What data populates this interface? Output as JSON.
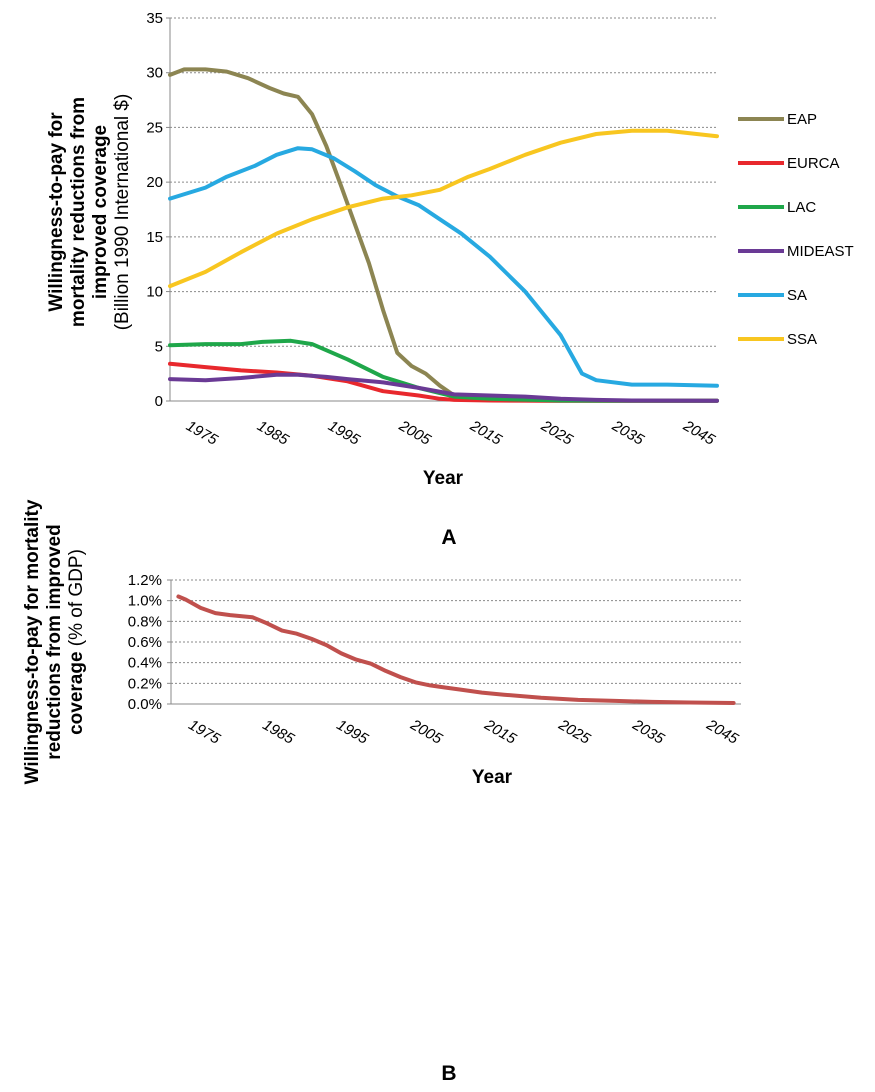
{
  "chart_data": [
    {
      "type": "line",
      "panel_label": "A",
      "xlabel": "Year",
      "ylabel_bold": "Willingness-to-pay for mortality reductions from improved coverage",
      "ylabel_normal": "(Billion 1990 International $)",
      "ylabel_lines": [
        {
          "bold": "Willingness-to-pay for",
          "normal": ""
        },
        {
          "bold": "mortality reductions from",
          "normal": ""
        },
        {
          "bold": "improved coverage",
          "normal": ""
        },
        {
          "bold": "",
          "normal": "(Billion 1990 International $)"
        }
      ],
      "xlim": [
        1970,
        2047
      ],
      "ylim": [
        0,
        35
      ],
      "yticks": [
        0,
        5,
        10,
        15,
        20,
        25,
        30,
        35
      ],
      "xticks": [
        1975,
        1985,
        1995,
        2005,
        2015,
        2025,
        2035,
        2045
      ],
      "grid": true,
      "legend_position": "right",
      "series": [
        {
          "name": "EAP",
          "color": "#8c8552",
          "x": [
            1970,
            1972,
            1975,
            1978,
            1981,
            1984,
            1986,
            1988,
            1990,
            1992,
            1994,
            1996,
            1998,
            2000,
            2002,
            2004,
            2006,
            2008,
            2010,
            2015,
            2020,
            2025,
            2030,
            2035,
            2040,
            2047
          ],
          "y": [
            29.8,
            30.3,
            30.3,
            30.1,
            29.5,
            28.6,
            28.1,
            27.8,
            26.2,
            23.3,
            19.8,
            16.2,
            12.6,
            8.3,
            4.4,
            3.2,
            2.5,
            1.4,
            0.5,
            0.1,
            0.05,
            0.03,
            0.02,
            0.02,
            0.02,
            0.02
          ]
        },
        {
          "name": "EURCA",
          "color": "#e8282d",
          "x": [
            1970,
            1975,
            1980,
            1985,
            1990,
            1995,
            2000,
            2005,
            2008,
            2010,
            2015,
            2025,
            2035,
            2047
          ],
          "y": [
            3.4,
            3.1,
            2.8,
            2.6,
            2.3,
            1.8,
            0.9,
            0.5,
            0.2,
            0.1,
            0.05,
            0.02,
            0.02,
            0.02
          ]
        },
        {
          "name": "LAC",
          "color": "#1fa74a",
          "x": [
            1970,
            1975,
            1980,
            1983,
            1987,
            1990,
            1995,
            2000,
            2005,
            2010,
            2015,
            2025,
            2035,
            2047
          ],
          "y": [
            5.1,
            5.2,
            5.2,
            5.4,
            5.5,
            5.2,
            3.8,
            2.2,
            1.2,
            0.4,
            0.2,
            0.05,
            0.02,
            0.02
          ]
        },
        {
          "name": "MIDEAST",
          "color": "#6a3a95",
          "x": [
            1970,
            1975,
            1980,
            1985,
            1988,
            1992,
            1995,
            2000,
            2005,
            2010,
            2015,
            2020,
            2025,
            2030,
            2035,
            2047
          ],
          "y": [
            2.0,
            1.9,
            2.1,
            2.4,
            2.4,
            2.2,
            2.0,
            1.7,
            1.2,
            0.6,
            0.5,
            0.4,
            0.2,
            0.1,
            0.05,
            0.02
          ]
        },
        {
          "name": "SA",
          "color": "#27a9e1",
          "x": [
            1970,
            1975,
            1978,
            1982,
            1985,
            1988,
            1990,
            1993,
            1996,
            1999,
            2002,
            2005,
            2008,
            2011,
            2015,
            2020,
            2025,
            2028,
            2030,
            2035,
            2040,
            2047
          ],
          "y": [
            18.5,
            19.5,
            20.5,
            21.5,
            22.5,
            23.1,
            23.0,
            22.2,
            21.0,
            19.7,
            18.7,
            17.9,
            16.6,
            15.3,
            13.2,
            10.0,
            6.0,
            2.5,
            1.9,
            1.5,
            1.5,
            1.4
          ]
        },
        {
          "name": "SSA",
          "color": "#f8c620",
          "x": [
            1970,
            1975,
            1980,
            1985,
            1990,
            1995,
            2000,
            2004,
            2008,
            2012,
            2015,
            2020,
            2025,
            2030,
            2035,
            2040,
            2047
          ],
          "y": [
            10.5,
            11.8,
            13.6,
            15.3,
            16.6,
            17.7,
            18.5,
            18.8,
            19.3,
            20.5,
            21.2,
            22.5,
            23.6,
            24.4,
            24.7,
            24.7,
            24.2
          ]
        }
      ]
    },
    {
      "type": "line",
      "panel_label": "B",
      "xlabel": "Year",
      "ylabel_bold": "Willingness-to-pay for mortality reductions from improved coverage",
      "ylabel_normal": "(% of GDP)",
      "ylabel_lines": [
        {
          "bold": "Willingness-to-pay for mortality",
          "normal": ""
        },
        {
          "bold": "reductions from improved",
          "normal": ""
        },
        {
          "bold": "coverage",
          "normal": " (% of GDP)"
        }
      ],
      "xlim": [
        1970,
        2047
      ],
      "ylim": [
        0,
        1.2
      ],
      "yticks": [
        0,
        0.2,
        0.4,
        0.6,
        0.8,
        1.0,
        1.2
      ],
      "ytick_labels": [
        "0.0%",
        "0.2%",
        "0.4%",
        "0.6%",
        "0.8%",
        "1.0%",
        "1.2%"
      ],
      "xticks": [
        1975,
        1985,
        1995,
        2005,
        2015,
        2025,
        2035,
        2045
      ],
      "grid": true,
      "series": [
        {
          "name": "",
          "color": "#c0504d",
          "x": [
            1971,
            1972,
            1974,
            1976,
            1978,
            1981,
            1983,
            1985,
            1987,
            1989,
            1991,
            1993,
            1995,
            1997,
            1999,
            2001,
            2003,
            2005,
            2007,
            2009,
            2012,
            2015,
            2020,
            2025,
            2030,
            2035,
            2040,
            2046
          ],
          "y": [
            1.04,
            1.01,
            0.93,
            0.88,
            0.86,
            0.84,
            0.78,
            0.71,
            0.68,
            0.63,
            0.57,
            0.49,
            0.43,
            0.39,
            0.32,
            0.26,
            0.21,
            0.18,
            0.16,
            0.14,
            0.11,
            0.09,
            0.06,
            0.04,
            0.03,
            0.02,
            0.015,
            0.01
          ]
        }
      ]
    }
  ]
}
